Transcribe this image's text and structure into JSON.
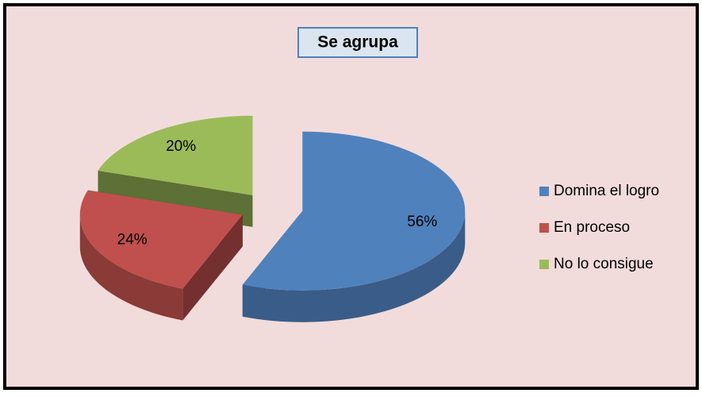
{
  "chart_data": {
    "type": "pie3d",
    "title": "Se agrupa",
    "categories": [
      "Domina el logro",
      "En proceso",
      "No lo consigue"
    ],
    "values": [
      56,
      24,
      20
    ],
    "value_labels": [
      "56%",
      "24%",
      "20%"
    ],
    "colors": [
      "#4f81bd",
      "#c0504d",
      "#9bbb59"
    ],
    "legend": "right"
  }
}
